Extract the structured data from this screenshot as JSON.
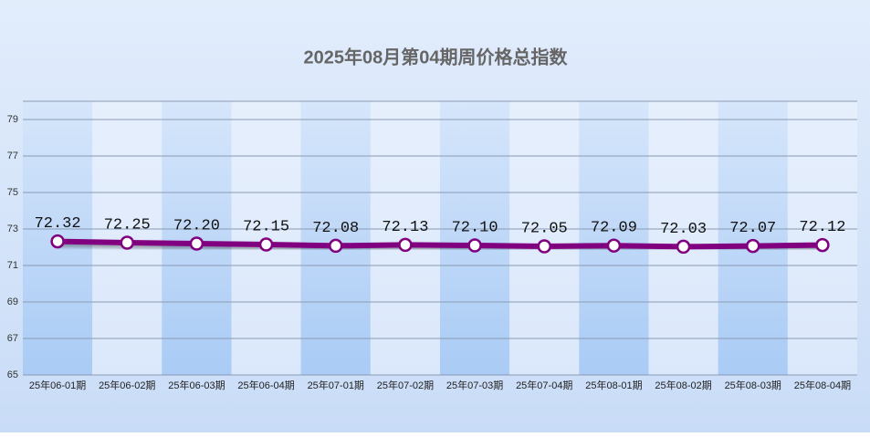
{
  "chart_data": {
    "type": "line",
    "title": "2025年08月第04期周价格总指数",
    "categories": [
      "25年06-01期",
      "25年06-02期",
      "25年06-03期",
      "25年06-04期",
      "25年07-01期",
      "25年07-02期",
      "25年07-03期",
      "25年07-04期",
      "25年08-01期",
      "25年08-02期",
      "25年08-03期",
      "25年08-04期"
    ],
    "values": [
      72.32,
      72.25,
      72.2,
      72.15,
      72.08,
      72.13,
      72.1,
      72.05,
      72.09,
      72.03,
      72.07,
      72.12
    ],
    "value_labels": [
      "72.32",
      "72.25",
      "72.20",
      "72.15",
      "72.08",
      "72.13",
      "72.10",
      "72.05",
      "72.09",
      "72.03",
      "72.07",
      "72.12"
    ],
    "color": "#800080",
    "ylim": [
      65,
      80
    ],
    "yticks": [
      65,
      67,
      69,
      71,
      73,
      75,
      77,
      79
    ],
    "grid": true
  }
}
